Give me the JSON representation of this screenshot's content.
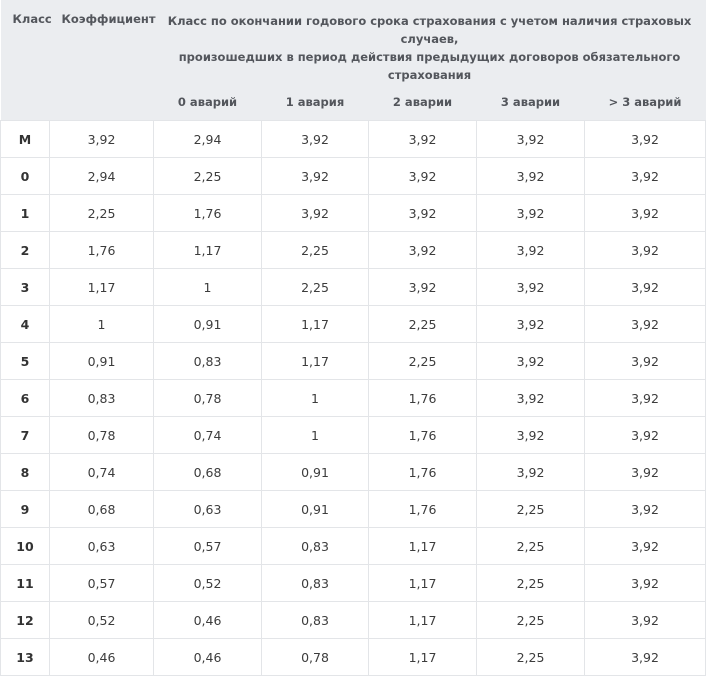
{
  "headers": {
    "class": "Класс",
    "coefficient": "Коэффициент",
    "group_title_line1": "Класс по окончании годового срока страхования с учетом наличия страховых случаев,",
    "group_title_line2": "произошедших в период действия предыдущих договоров обязательного страхования",
    "sub": [
      "0 аварий",
      "1 авария",
      "2 аварии",
      "3 аварии",
      "> 3 аварий"
    ]
  },
  "rows": [
    {
      "class": "М",
      "coef": "3,92",
      "a0": "2,94",
      "a1": "3,92",
      "a2": "3,92",
      "a3": "3,92",
      "a4": "3,92"
    },
    {
      "class": "0",
      "coef": "2,94",
      "a0": "2,25",
      "a1": "3,92",
      "a2": "3,92",
      "a3": "3,92",
      "a4": "3,92"
    },
    {
      "class": "1",
      "coef": "2,25",
      "a0": "1,76",
      "a1": "3,92",
      "a2": "3,92",
      "a3": "3,92",
      "a4": "3,92"
    },
    {
      "class": "2",
      "coef": "1,76",
      "a0": "1,17",
      "a1": "2,25",
      "a2": "3,92",
      "a3": "3,92",
      "a4": "3,92"
    },
    {
      "class": "3",
      "coef": "1,17",
      "a0": "1",
      "a1": "2,25",
      "a2": "3,92",
      "a3": "3,92",
      "a4": "3,92"
    },
    {
      "class": "4",
      "coef": "1",
      "a0": "0,91",
      "a1": "1,17",
      "a2": "2,25",
      "a3": "3,92",
      "a4": "3,92"
    },
    {
      "class": "5",
      "coef": "0,91",
      "a0": "0,83",
      "a1": "1,17",
      "a2": "2,25",
      "a3": "3,92",
      "a4": "3,92"
    },
    {
      "class": "6",
      "coef": "0,83",
      "a0": "0,78",
      "a1": "1",
      "a2": "1,76",
      "a3": "3,92",
      "a4": "3,92"
    },
    {
      "class": "7",
      "coef": "0,78",
      "a0": "0,74",
      "a1": "1",
      "a2": "1,76",
      "a3": "3,92",
      "a4": "3,92"
    },
    {
      "class": "8",
      "coef": "0,74",
      "a0": "0,68",
      "a1": "0,91",
      "a2": "1,76",
      "a3": "3,92",
      "a4": "3,92"
    },
    {
      "class": "9",
      "coef": "0,68",
      "a0": "0,63",
      "a1": "0,91",
      "a2": "1,76",
      "a3": "2,25",
      "a4": "3,92"
    },
    {
      "class": "10",
      "coef": "0,63",
      "a0": "0,57",
      "a1": "0,83",
      "a2": "1,17",
      "a3": "2,25",
      "a4": "3,92"
    },
    {
      "class": "11",
      "coef": "0,57",
      "a0": "0,52",
      "a1": "0,83",
      "a2": "1,17",
      "a3": "2,25",
      "a4": "3,92"
    },
    {
      "class": "12",
      "coef": "0,52",
      "a0": "0,46",
      "a1": "0,83",
      "a2": "1,17",
      "a3": "2,25",
      "a4": "3,92"
    },
    {
      "class": "13",
      "coef": "0,46",
      "a0": "0,46",
      "a1": "0,78",
      "a2": "1,17",
      "a3": "2,25",
      "a4": "3,92"
    }
  ]
}
